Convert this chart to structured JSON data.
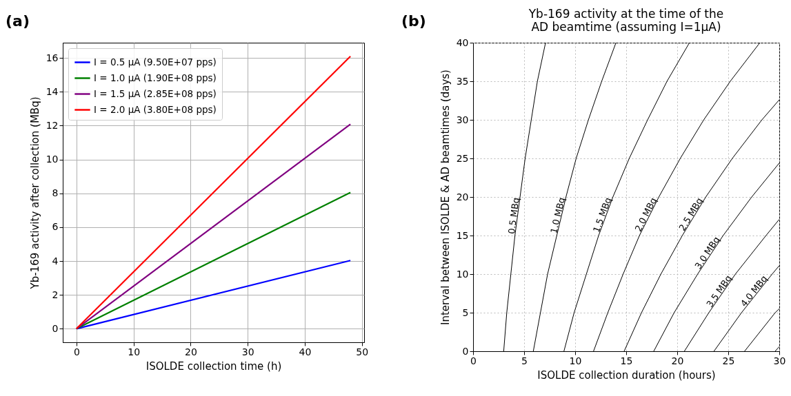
{
  "chart_data": [
    {
      "type": "line",
      "annotations": [
        "(a)"
      ],
      "xlabel": "ISOLDE collection time (h)",
      "ylabel": "Yb-169 activity after collection (MBq)",
      "xlim": [
        -2.4,
        50.4
      ],
      "xticks": [
        0,
        10,
        20,
        30,
        40,
        50
      ],
      "ylim": [
        -0.8,
        16.9
      ],
      "yticks": [
        0,
        2,
        4,
        6,
        8,
        10,
        12,
        14,
        16
      ],
      "grid": true,
      "legend": "top left",
      "marker": "none",
      "line_style": "solid",
      "series": [
        {
          "name": "I = 0.5 μA (9.50E+07 pps)",
          "color": "#0000ff",
          "x": [
            0,
            48
          ],
          "values": [
            0,
            4.03
          ]
        },
        {
          "name": "I = 1.0 μA (1.90E+08 pps)",
          "color": "#008000",
          "x": [
            0,
            48
          ],
          "values": [
            0,
            8.05
          ]
        },
        {
          "name": "I = 1.5 μA (2.85E+08 pps)",
          "color": "#800080",
          "x": [
            0,
            48
          ],
          "values": [
            0,
            12.08
          ]
        },
        {
          "name": "I = 2.0 μA (3.80E+08 pps)",
          "color": "#ff0000",
          "x": [
            0,
            48
          ],
          "values": [
            0,
            16.1
          ]
        }
      ]
    },
    {
      "type": "line",
      "annotations": [
        "(b)"
      ],
      "title": "Yb-169 activity at the time of the\nAD beamtime (assuming I=1μA)",
      "xlabel": "ISOLDE collection duration (hours)",
      "ylabel": "Interval between ISOLDE & AD beamtimes (days)",
      "xlim": [
        0,
        30
      ],
      "xticks": [
        0,
        5,
        10,
        15,
        20,
        25,
        30
      ],
      "ylim": [
        0,
        40
      ],
      "yticks": [
        0,
        5,
        10,
        15,
        20,
        25,
        30,
        35,
        40
      ],
      "grid": true,
      "legend": false,
      "marker": "none",
      "line_style": "solid",
      "series": [
        {
          "name": "0.5 MBq",
          "color": "#000000",
          "x": [
            3.0,
            3.3,
            3.7,
            4.1,
            4.6,
            5.1,
            5.7,
            6.3,
            7.1
          ],
          "values": [
            0,
            5,
            10,
            15,
            20,
            25,
            30,
            35,
            40
          ]
        },
        {
          "name": "1.0 MBq",
          "color": "#000000",
          "x": [
            5.9,
            6.6,
            7.3,
            8.2,
            9.1,
            10.1,
            11.3,
            12.6,
            14.0
          ],
          "values": [
            0,
            5,
            10,
            15,
            20,
            25,
            30,
            35,
            40
          ]
        },
        {
          "name": "1.5 MBq",
          "color": "#000000",
          "x": [
            8.9,
            9.9,
            11.1,
            12.3,
            13.7,
            15.3,
            17.1,
            19.0,
            21.2
          ],
          "values": [
            0,
            5,
            10,
            15,
            20,
            25,
            30,
            35,
            40
          ]
        },
        {
          "name": "2.0 MBq",
          "color": "#000000",
          "x": [
            11.8,
            13.2,
            14.7,
            16.3,
            18.2,
            20.3,
            22.6,
            25.2,
            28.1
          ],
          "values": [
            0,
            5,
            10,
            15,
            20,
            25,
            30,
            35,
            40
          ]
        },
        {
          "name": "2.5 MBq",
          "color": "#000000",
          "x": [
            14.8,
            16.5,
            18.4,
            20.5,
            22.8,
            25.4,
            28.3,
            30
          ],
          "values": [
            0,
            5,
            10,
            15,
            20,
            25,
            30,
            32.6
          ]
        },
        {
          "name": "3.0 MBq",
          "color": "#000000",
          "x": [
            17.7,
            19.7,
            22.0,
            24.5,
            27.3,
            30
          ],
          "values": [
            0,
            5,
            10,
            15,
            20,
            24.4
          ]
        },
        {
          "name": "3.5 MBq",
          "color": "#000000",
          "x": [
            20.7,
            23.1,
            25.7,
            28.7,
            30
          ],
          "values": [
            0,
            5,
            10,
            15,
            17.1
          ]
        },
        {
          "name": "4.0 MBq",
          "color": "#000000",
          "x": [
            23.6,
            26.3,
            29.3,
            30
          ],
          "values": [
            0,
            5,
            10,
            11.1
          ]
        },
        {
          "color": "#000000",
          "x": [
            26.6,
            29.6,
            30
          ],
          "values": [
            0,
            5,
            5.5
          ]
        },
        {
          "color": "#000000",
          "x": [
            29.6,
            30
          ],
          "values": [
            0,
            0.6
          ]
        }
      ]
    }
  ]
}
